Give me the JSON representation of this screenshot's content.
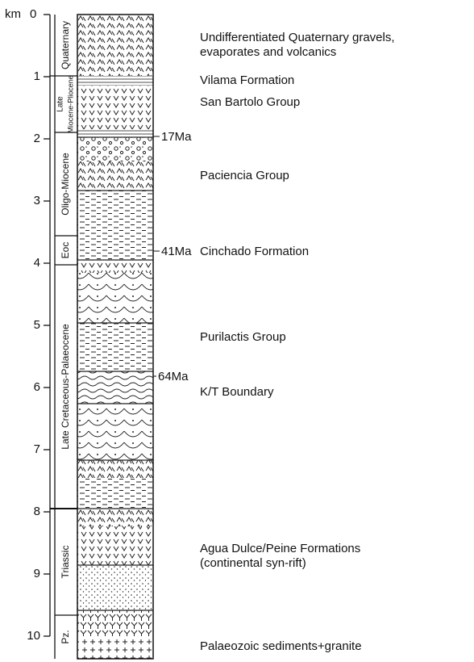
{
  "axis": {
    "unit": "km",
    "ticks": [
      0,
      1,
      2,
      3,
      4,
      5,
      6,
      7,
      8,
      9,
      10
    ]
  },
  "periods": [
    "Quaternary",
    "Late",
    "Miocene-Pliocene",
    "Oligo-Miocene",
    "Eoc",
    "Late Cretaceous-Palaeocene",
    "Triassic",
    "Pz."
  ],
  "ages": [
    "17Ma",
    "41Ma",
    "64Ma"
  ],
  "units": [
    "Undifferentiated Quaternary gravels,",
    "evaporates and volcanics",
    "Vilama Formation",
    "San Bartolo Group",
    "Paciencia Group",
    "Cinchado Formation",
    "Purilactis Group",
    "K/T Boundary",
    "Agua Dulce/Peine Formations",
    "(continental syn-rift)",
    "Palaeozoic sediments+granite"
  ]
}
